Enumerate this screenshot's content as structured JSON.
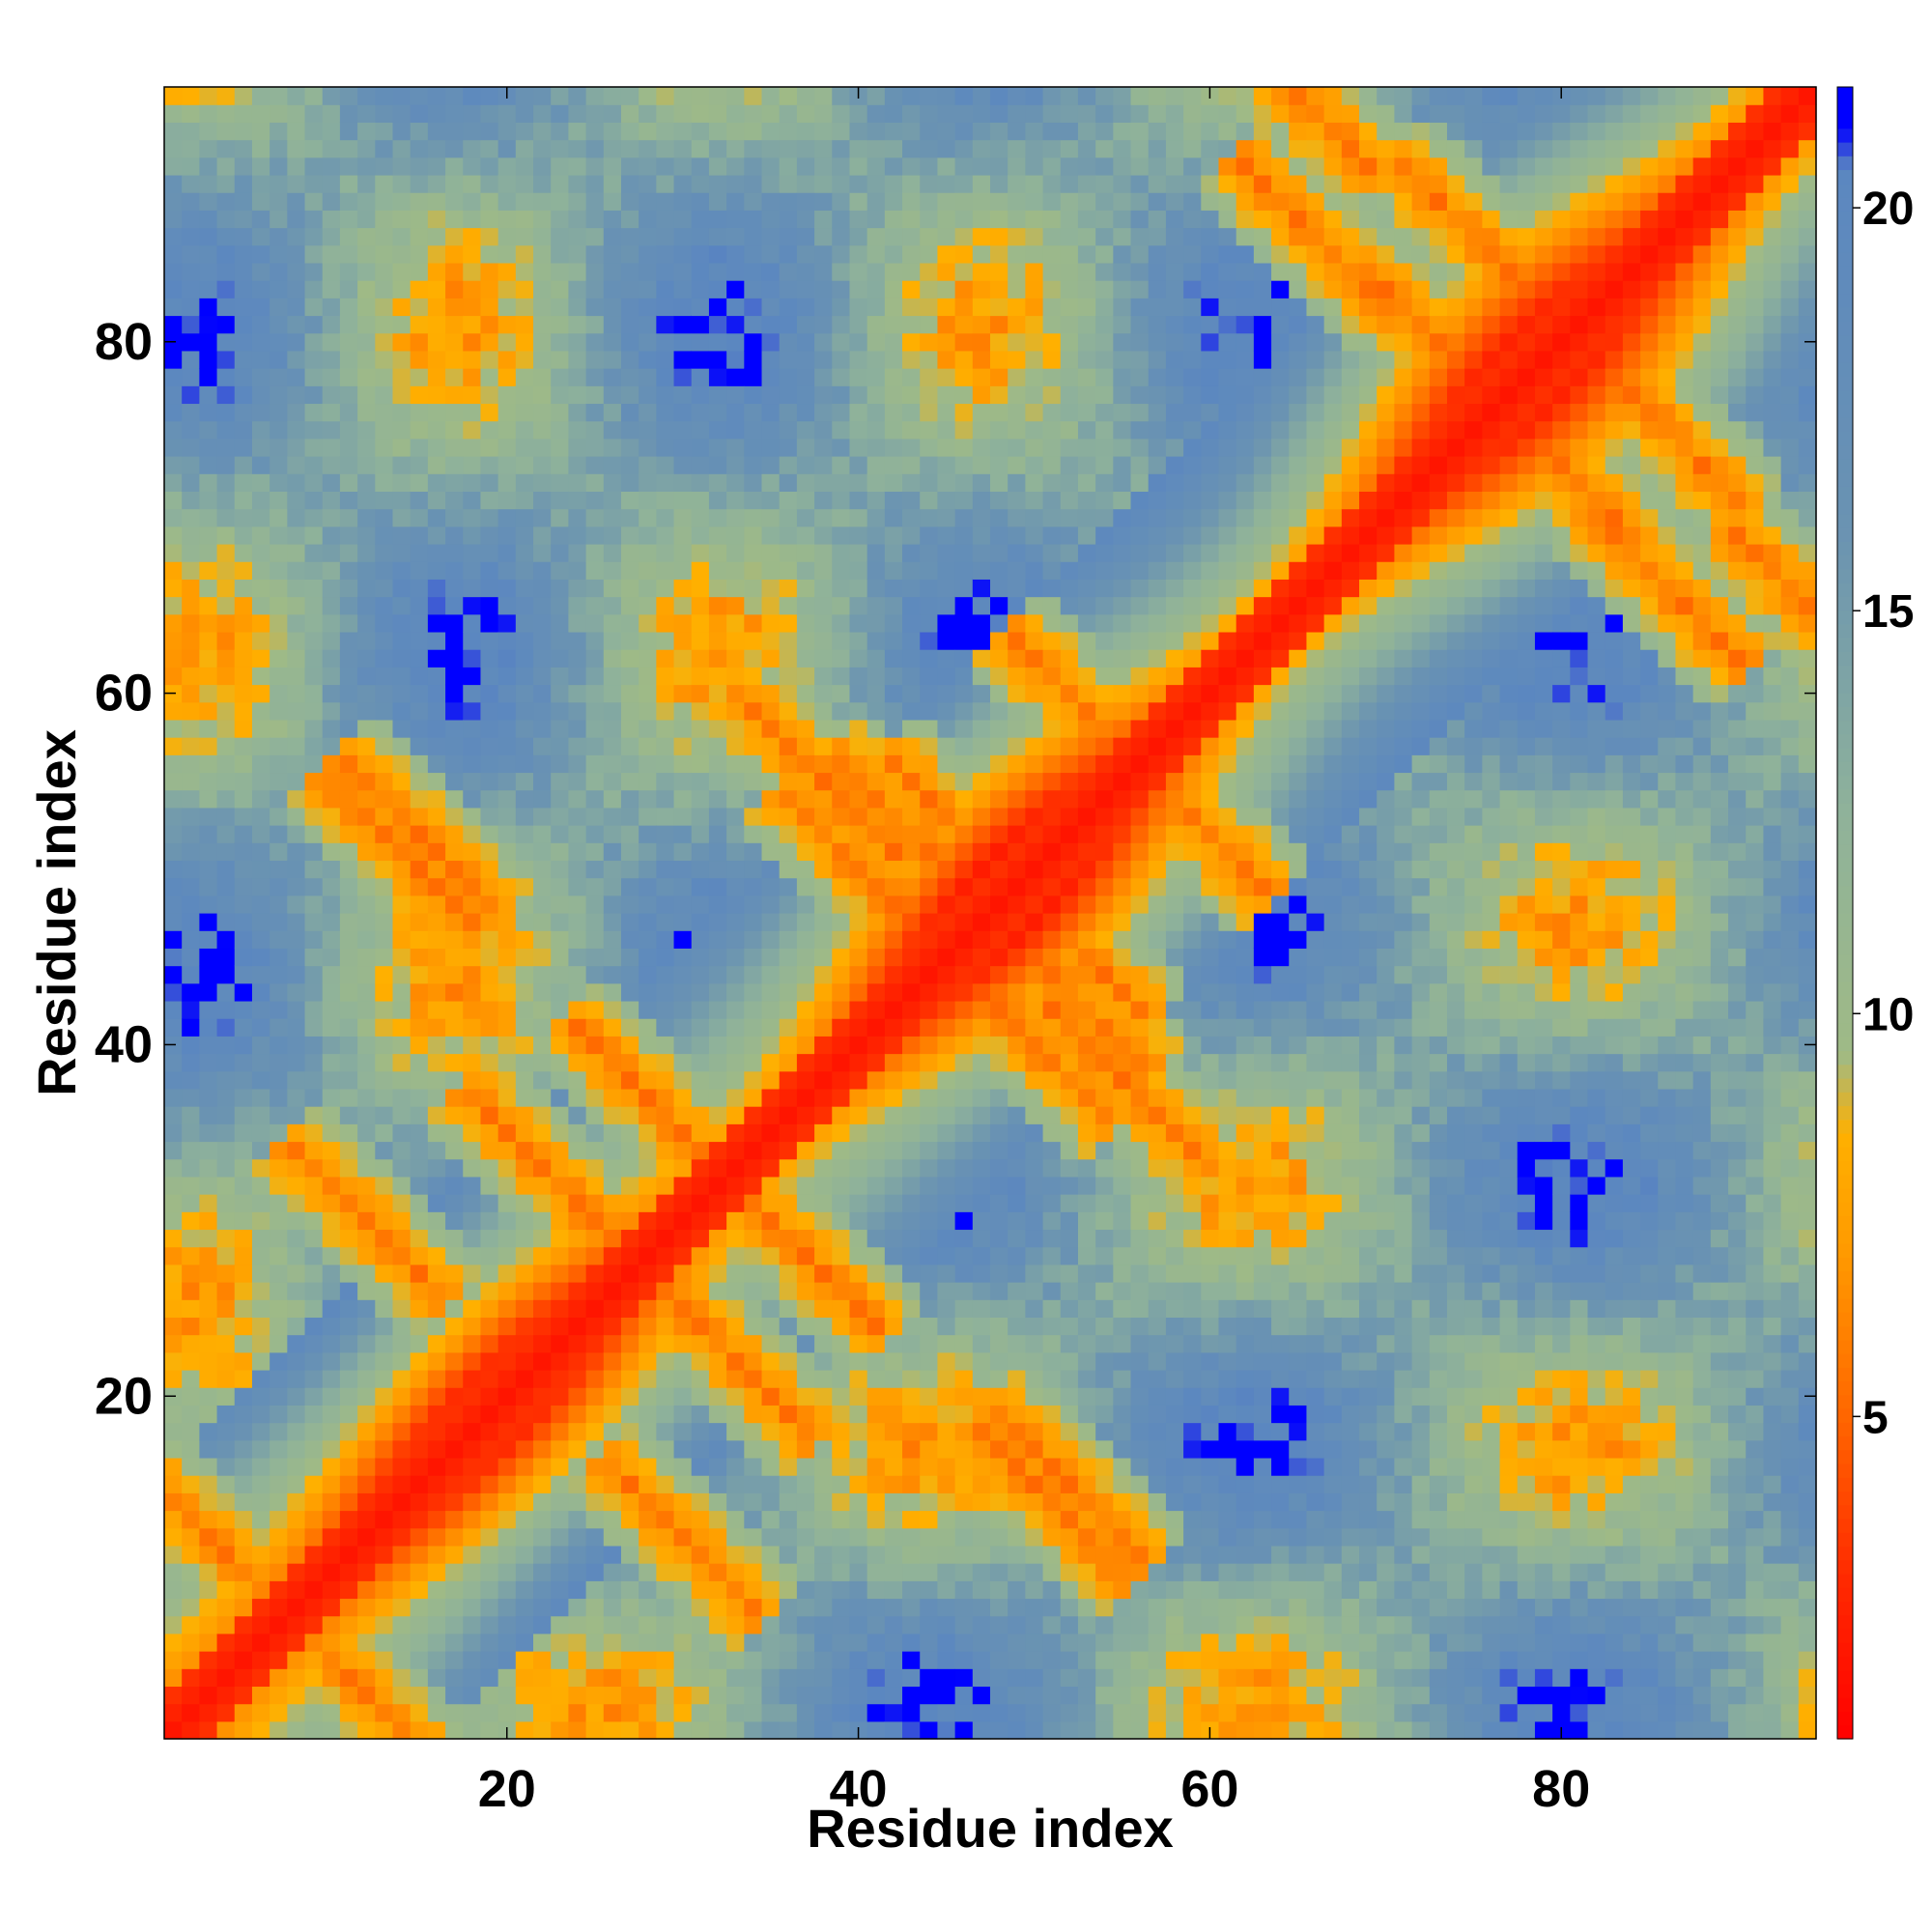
{
  "chart_data": {
    "type": "heatmap",
    "title": "",
    "xlabel": "Residue index",
    "ylabel": "Residue index",
    "n_residues": 94,
    "xlim": [
      1,
      94
    ],
    "ylim": [
      1,
      94
    ],
    "x_ticks": [
      20,
      40,
      60,
      80
    ],
    "y_ticks": [
      20,
      40,
      60,
      80
    ],
    "x_tick_labels": [
      "20",
      "40",
      "60",
      "80"
    ],
    "y_tick_labels": [
      "20",
      "40",
      "60",
      "80"
    ],
    "colorbar": {
      "range": [
        1,
        21.5
      ],
      "ticks": [
        5,
        10,
        15,
        20
      ],
      "tick_labels": [
        "5",
        "10",
        "15",
        "20"
      ],
      "stops": [
        {
          "value": 1.0,
          "color": "#ff0000"
        },
        {
          "value": 3.0,
          "color": "#ff2a00"
        },
        {
          "value": 5.0,
          "color": "#ff6600"
        },
        {
          "value": 7.0,
          "color": "#ff9900"
        },
        {
          "value": 8.5,
          "color": "#ffb000"
        },
        {
          "value": 9.5,
          "color": "#9fba86"
        },
        {
          "value": 12.5,
          "color": "#8fb29a"
        },
        {
          "value": 16.0,
          "color": "#6a93b2"
        },
        {
          "value": 20.5,
          "color": "#5b87c0"
        },
        {
          "value": 21.0,
          "color": "#0000ff"
        }
      ]
    },
    "secondary_structure_contacts": [
      {
        "i": 3,
        "j": 12
      },
      {
        "i": 12,
        "j": 30
      },
      {
        "i": 15,
        "j": 52
      },
      {
        "i": 22,
        "j": 33
      },
      {
        "i": 28,
        "j": 37
      },
      {
        "i": 38,
        "j": 55
      },
      {
        "i": 43,
        "j": 52
      },
      {
        "i": 46,
        "j": 52
      },
      {
        "i": 50,
        "j": 40
      },
      {
        "i": 53,
        "j": 59
      },
      {
        "i": 65,
        "j": 94
      },
      {
        "i": 75,
        "j": 86
      },
      {
        "i": 80,
        "j": 73
      },
      {
        "i": 86,
        "j": 66
      },
      {
        "i": 51,
        "j": 14
      }
    ],
    "grid": false,
    "legend": "colorbar-right"
  }
}
